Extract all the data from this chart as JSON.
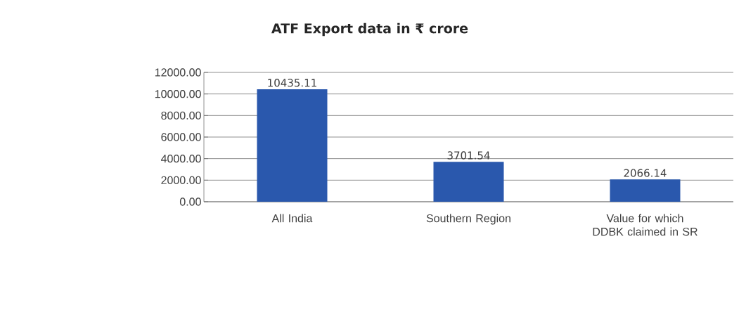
{
  "chart_data": {
    "type": "bar",
    "title": "ATF Export data in ₹ crore",
    "categories": [
      "All India",
      "Southern Region",
      "Value for which DDBK claimed in SR"
    ],
    "values": [
      10435.11,
      3701.54,
      2066.14
    ],
    "color": "#2a58ad",
    "ylim": [
      0,
      12000
    ],
    "yticks": [
      {
        "value": 0,
        "label": "0.00"
      },
      {
        "value": 2000,
        "label": "2000.00"
      },
      {
        "value": 4000,
        "label": "4000.00"
      },
      {
        "value": 6000,
        "label": "6000.00"
      },
      {
        "value": 8000,
        "label": "8000.00"
      },
      {
        "value": 10000,
        "label": "10000.00"
      },
      {
        "value": 12000,
        "label": "12000.00"
      }
    ],
    "grid": "y",
    "data_labels": true
  }
}
